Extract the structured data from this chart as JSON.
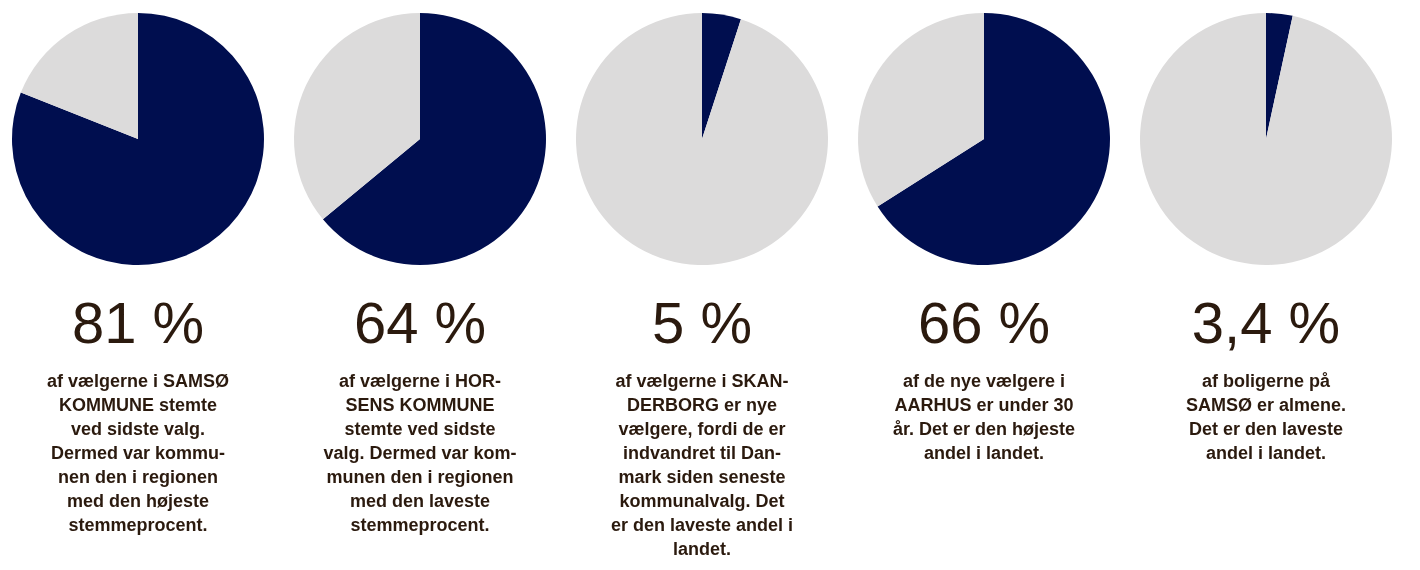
{
  "chart_data": [
    {
      "type": "pie",
      "categories": [
        null,
        null
      ],
      "values": [
        81,
        19
      ],
      "colors": [
        "#000e4f",
        "#dcdbdb"
      ],
      "title": "81 %",
      "annotations": [
        "af vælgerne i SAMSØ",
        "KOMMUNE stemte",
        "ved sidste valg.",
        "Dermed var kommu-",
        "nen den i regionen",
        "med den højeste",
        "stemmeprocent."
      ]
    },
    {
      "type": "pie",
      "categories": [
        null,
        null
      ],
      "values": [
        64,
        36
      ],
      "colors": [
        "#000e4f",
        "#dcdbdb"
      ],
      "title": "64 %",
      "annotations": [
        "af vælgerne i HOR-",
        "SENS KOMMUNE",
        "stemte ved sidste",
        "valg. Dermed var kom-",
        "munen den i regionen",
        "med den laveste",
        "stemmeprocent."
      ]
    },
    {
      "type": "pie",
      "categories": [
        null,
        null
      ],
      "values": [
        5,
        95
      ],
      "colors": [
        "#000e4f",
        "#dcdbdb"
      ],
      "title": "5 %",
      "annotations": [
        "af vælgerne i SKAN-",
        "DERBORG er nye",
        "vælgere, fordi de er",
        "indvandret til Dan-",
        "mark siden seneste",
        "kommunalvalg. Det",
        "er den laveste andel i",
        "landet."
      ]
    },
    {
      "type": "pie",
      "categories": [
        null,
        null
      ],
      "values": [
        66,
        34
      ],
      "colors": [
        "#000e4f",
        "#dcdbdb"
      ],
      "title": "66 %",
      "annotations": [
        "af de nye vælgere i",
        "AARHUS er under 30",
        "år. Det er den højeste",
        "andel i landet."
      ]
    },
    {
      "type": "pie",
      "categories": [
        null,
        null
      ],
      "values": [
        3.4,
        96.6
      ],
      "colors": [
        "#000e4f",
        "#dcdbdb"
      ],
      "title": "3,4 %",
      "annotations": [
        "af boligerne på",
        "SAMSØ er almene.",
        "Det er den laveste",
        "andel i landet."
      ]
    }
  ]
}
